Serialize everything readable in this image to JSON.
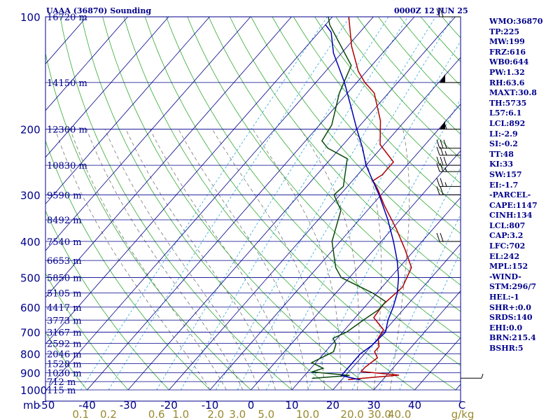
{
  "header": {
    "title": "UAAA (36870) Sounding",
    "valid_time": "0000Z 12 JUN 25"
  },
  "indices": [
    "WMO:36870",
    "TP:225",
    "MW:199",
    "FRZ:616",
    "WB0:644",
    "PW:1.32",
    "RH:63.6",
    "MAXT:30.8",
    "TH:5735",
    "L57:6.1",
    "LCL:892",
    "LI:-2.9",
    "SI:-0.2",
    "TT:48",
    "KI:33",
    "SW:157",
    "EI:-1.7",
    "-PARCEL-",
    "CAPE:1147",
    "CINH:134",
    "LCL:807",
    "CAP:3.2",
    "LFC:702",
    "EL:242",
    "MPL:152",
    "-WIND-",
    "STM:296/7",
    "HEL:-1",
    "SHR+:0.0",
    "SRDS:140",
    "EHI:0.0",
    "BRN:215.4",
    "BSHR:5"
  ],
  "colors": {
    "frame": "#00008b",
    "isobar": "#00008b",
    "isotherm": "#00008b",
    "dry_adiabat": "#33aa33",
    "moist_adiabat": "#777777",
    "mixing_ratio": "#2aa8d8",
    "temperature": "#b00000",
    "dewpoint": "#0a4a0a",
    "parcel": "#0000b0",
    "mixing_ratio_labels": "#9a8a30"
  },
  "chart_data": {
    "type": "skew-T log-P sounding",
    "pressure_axis": {
      "unit": "mb",
      "range": [
        1000,
        100
      ],
      "scale": "log",
      "tick_labels": [
        "100",
        "200",
        "300",
        "400",
        "500",
        "600",
        "700",
        "800",
        "900",
        "1000"
      ],
      "unit_label": "mb"
    },
    "temperature_axis": {
      "unit": "C",
      "tick_labels": [
        "-50",
        "-40",
        "-30",
        "-20",
        "-10",
        "0",
        "10",
        "20",
        "30",
        "40"
      ],
      "unit_label": "C"
    },
    "mixing_ratio_axis": {
      "unit": "g/kg",
      "tick_labels": [
        "0.1",
        "0.2",
        "0.6",
        "1.0",
        "2.0",
        "3.0",
        "5.0",
        "10.0",
        "20.0",
        "30.0",
        "40.0"
      ],
      "unit_label": "g/kg"
    },
    "height_labels": [
      {
        "p": 100,
        "label": "16720 m"
      },
      {
        "p": 150,
        "label": "14150 m"
      },
      {
        "p": 200,
        "label": "12300 m"
      },
      {
        "p": 250,
        "label": "10830 m"
      },
      {
        "p": 300,
        "label": "9590 m"
      },
      {
        "p": 350,
        "label": "8492 m"
      },
      {
        "p": 400,
        "label": "7540 m"
      },
      {
        "p": 450,
        "label": "6653 m"
      },
      {
        "p": 500,
        "label": "5850 m"
      },
      {
        "p": 550,
        "label": "5105 m"
      },
      {
        "p": 600,
        "label": "4417 m"
      },
      {
        "p": 650,
        "label": "3773 m"
      },
      {
        "p": 700,
        "label": "3167 m"
      },
      {
        "p": 750,
        "label": "2592 m"
      },
      {
        "p": 800,
        "label": "2046 m"
      },
      {
        "p": 850,
        "label": "1528 m"
      },
      {
        "p": 900,
        "label": "1030 m"
      },
      {
        "p": 950,
        "label": "712 m"
      },
      {
        "p": 1000,
        "label": "115 m"
      }
    ],
    "series": [
      {
        "values": [
          [
            938,
            21.5
          ],
          [
            913,
            33
          ],
          [
            893,
            23
          ],
          [
            870,
            23
          ],
          [
            820,
            24
          ],
          [
            790,
            22
          ],
          [
            765,
            22
          ],
          [
            727,
            20
          ],
          [
            690,
            19.5
          ],
          [
            640,
            14.5
          ],
          [
            590,
            14
          ],
          [
            530,
            15
          ],
          [
            470,
            13
          ],
          [
            420,
            7.5
          ],
          [
            370,
            1
          ],
          [
            320,
            -7
          ],
          [
            290,
            -12
          ],
          [
            275,
            -15
          ],
          [
            265,
            -14
          ],
          [
            245,
            -14
          ],
          [
            220,
            -21
          ],
          [
            190,
            -26
          ],
          [
            160,
            -33.5
          ],
          [
            150,
            -38
          ],
          [
            140,
            -42
          ],
          [
            120,
            -49
          ],
          [
            100,
            -56
          ]
        ]
      },
      {
        "values": [
          [
            931,
            12.4
          ],
          [
            915,
            21
          ],
          [
            895,
            11
          ],
          [
            875,
            13
          ],
          [
            845,
            9
          ],
          [
            790,
            12
          ],
          [
            755,
            11
          ],
          [
            727,
            9
          ],
          [
            700,
            11
          ],
          [
            650,
            12.5
          ],
          [
            610,
            14
          ],
          [
            580,
            14
          ],
          [
            550,
            9
          ],
          [
            500,
            -2
          ],
          [
            470,
            -5.5
          ],
          [
            400,
            -12
          ],
          [
            330,
            -16.5
          ],
          [
            300,
            -21.5
          ],
          [
            285,
            -21
          ],
          [
            240,
            -26
          ],
          [
            225,
            -33
          ],
          [
            215,
            -36
          ],
          [
            195,
            -37
          ],
          [
            160,
            -42
          ],
          [
            135,
            -45
          ],
          [
            105,
            -59
          ],
          [
            100,
            -61
          ]
        ]
      },
      {
        "values": [
          [
            940,
            24.5
          ],
          [
            915,
            19
          ],
          [
            880,
            19
          ],
          [
            800,
            19
          ],
          [
            760,
            20
          ],
          [
            700,
            20.5
          ],
          [
            650,
            18.5
          ],
          [
            600,
            17
          ],
          [
            550,
            15
          ],
          [
            500,
            12
          ],
          [
            450,
            8
          ],
          [
            400,
            3
          ],
          [
            350,
            -3
          ],
          [
            300,
            -10.5
          ],
          [
            270,
            -16
          ],
          [
            250,
            -20
          ],
          [
            225,
            -24.5
          ],
          [
            200,
            -30
          ],
          [
            175,
            -36
          ],
          [
            150,
            -43
          ],
          [
            125,
            -52
          ],
          [
            110,
            -57
          ],
          [
            105,
            -60
          ]
        ]
      }
    ],
    "wind_barbs": [
      {
        "p": 100,
        "dir": "W",
        "speed_kt": 20
      },
      {
        "p": 150,
        "dir": "W",
        "speed_kt": 50
      },
      {
        "p": 200,
        "dir": "W",
        "speed_kt": 55
      },
      {
        "p": 225,
        "dir": "W",
        "speed_kt": 30
      },
      {
        "p": 235,
        "dir": "W",
        "speed_kt": 25
      },
      {
        "p": 250,
        "dir": "W",
        "speed_kt": 30
      },
      {
        "p": 260,
        "dir": "W",
        "speed_kt": 25
      },
      {
        "p": 285,
        "dir": "W",
        "speed_kt": 25
      },
      {
        "p": 300,
        "dir": "W",
        "speed_kt": 20
      },
      {
        "p": 400,
        "dir": "W",
        "speed_kt": 20
      },
      {
        "p": 930,
        "dir": "E",
        "speed_kt": 5
      }
    ]
  }
}
